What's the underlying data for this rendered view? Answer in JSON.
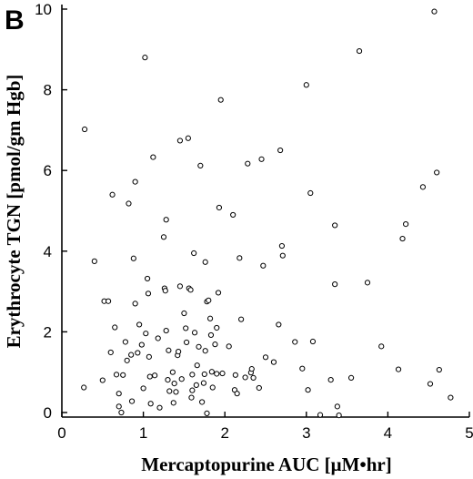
{
  "panel_label": "B",
  "chart_data": {
    "type": "scatter",
    "xlabel": "Mercaptopurine AUC [μM•hr]",
    "ylabel": "Erythrocyte TGN [pmol/gm Hgb]",
    "xlim": [
      0,
      5
    ],
    "ylim": [
      0,
      10
    ],
    "xticks": [
      "0",
      "1",
      "2",
      "3",
      "4",
      "5"
    ],
    "yticks": [
      "0",
      "2",
      "4",
      "6",
      "8",
      "10"
    ],
    "grid": false,
    "marker": "open-circle",
    "points": [
      [
        0.28,
        7.02
      ],
      [
        0.4,
        3.75
      ],
      [
        0.27,
        0.62
      ],
      [
        0.5,
        0.8
      ],
      [
        0.52,
        2.76
      ],
      [
        0.57,
        2.76
      ],
      [
        0.6,
        1.49
      ],
      [
        0.62,
        5.4
      ],
      [
        0.65,
        2.11
      ],
      [
        0.67,
        0.94
      ],
      [
        0.7,
        0.47
      ],
      [
        0.7,
        0.15
      ],
      [
        0.73,
        0.0
      ],
      [
        0.75,
        0.93
      ],
      [
        0.78,
        1.75
      ],
      [
        0.8,
        1.29
      ],
      [
        0.82,
        5.18
      ],
      [
        0.85,
        1.43
      ],
      [
        0.86,
        0.28
      ],
      [
        0.88,
        3.82
      ],
      [
        0.9,
        5.72
      ],
      [
        0.9,
        2.7
      ],
      [
        0.93,
        1.48
      ],
      [
        0.95,
        2.18
      ],
      [
        0.98,
        1.68
      ],
      [
        1.0,
        0.6
      ],
      [
        1.02,
        8.8
      ],
      [
        1.03,
        1.96
      ],
      [
        1.05,
        3.32
      ],
      [
        1.06,
        2.95
      ],
      [
        1.07,
        1.38
      ],
      [
        1.08,
        0.89
      ],
      [
        1.09,
        0.22
      ],
      [
        1.12,
        6.33
      ],
      [
        1.14,
        0.92
      ],
      [
        1.18,
        1.84
      ],
      [
        1.2,
        0.12
      ],
      [
        1.25,
        4.35
      ],
      [
        1.26,
        3.08
      ],
      [
        1.27,
        3.02
      ],
      [
        1.28,
        4.78
      ],
      [
        1.28,
        2.03
      ],
      [
        1.3,
        0.81
      ],
      [
        1.31,
        1.54
      ],
      [
        1.32,
        0.53
      ],
      [
        1.36,
        1.0
      ],
      [
        1.37,
        0.24
      ],
      [
        1.38,
        0.72
      ],
      [
        1.4,
        0.51
      ],
      [
        1.42,
        1.42
      ],
      [
        1.43,
        1.51
      ],
      [
        1.45,
        3.13
      ],
      [
        1.45,
        6.74
      ],
      [
        1.47,
        0.83
      ],
      [
        1.5,
        2.46
      ],
      [
        1.52,
        2.09
      ],
      [
        1.53,
        1.74
      ],
      [
        1.55,
        6.8
      ],
      [
        1.56,
        3.08
      ],
      [
        1.58,
        3.04
      ],
      [
        1.59,
        0.37
      ],
      [
        1.6,
        0.94
      ],
      [
        1.6,
        0.55
      ],
      [
        1.62,
        3.95
      ],
      [
        1.63,
        1.98
      ],
      [
        1.65,
        0.68
      ],
      [
        1.66,
        1.17
      ],
      [
        1.68,
        1.63
      ],
      [
        1.7,
        6.12
      ],
      [
        1.72,
        0.26
      ],
      [
        1.74,
        0.73
      ],
      [
        1.75,
        0.95
      ],
      [
        1.76,
        3.73
      ],
      [
        1.76,
        1.53
      ],
      [
        1.78,
        2.75
      ],
      [
        1.78,
        -0.02
      ],
      [
        1.8,
        2.78
      ],
      [
        1.82,
        2.33
      ],
      [
        1.83,
        1.92
      ],
      [
        1.84,
        1.01
      ],
      [
        1.85,
        0.62
      ],
      [
        1.88,
        1.69
      ],
      [
        1.9,
        2.1
      ],
      [
        1.9,
        0.96
      ],
      [
        1.92,
        2.97
      ],
      [
        1.93,
        5.08
      ],
      [
        1.95,
        7.75
      ],
      [
        1.97,
        0.97
      ],
      [
        2.05,
        1.64
      ],
      [
        2.1,
        4.9
      ],
      [
        2.12,
        0.56
      ],
      [
        2.13,
        0.93
      ],
      [
        2.15,
        0.47
      ],
      [
        2.18,
        3.83
      ],
      [
        2.2,
        2.31
      ],
      [
        2.25,
        0.87
      ],
      [
        2.28,
        6.17
      ],
      [
        2.32,
        0.99
      ],
      [
        2.33,
        1.08
      ],
      [
        2.35,
        0.86
      ],
      [
        2.42,
        0.61
      ],
      [
        2.45,
        6.28
      ],
      [
        2.47,
        3.64
      ],
      [
        2.5,
        1.37
      ],
      [
        2.6,
        1.25
      ],
      [
        2.66,
        2.18
      ],
      [
        2.68,
        6.5
      ],
      [
        2.7,
        4.13
      ],
      [
        2.71,
        3.89
      ],
      [
        2.86,
        1.75
      ],
      [
        2.95,
        1.09
      ],
      [
        3.0,
        8.12
      ],
      [
        3.02,
        0.56
      ],
      [
        3.05,
        5.44
      ],
      [
        3.08,
        1.76
      ],
      [
        3.17,
        -0.06
      ],
      [
        3.3,
        0.81
      ],
      [
        3.35,
        4.64
      ],
      [
        3.35,
        3.18
      ],
      [
        3.38,
        0.15
      ],
      [
        3.4,
        -0.07
      ],
      [
        3.55,
        0.86
      ],
      [
        3.65,
        8.96
      ],
      [
        3.75,
        3.22
      ],
      [
        3.92,
        1.64
      ],
      [
        4.13,
        1.07
      ],
      [
        4.18,
        4.31
      ],
      [
        4.22,
        4.67
      ],
      [
        4.43,
        5.59
      ],
      [
        4.52,
        0.71
      ],
      [
        4.57,
        9.94
      ],
      [
        4.6,
        5.95
      ],
      [
        4.63,
        1.06
      ],
      [
        4.77,
        0.37
      ]
    ]
  }
}
